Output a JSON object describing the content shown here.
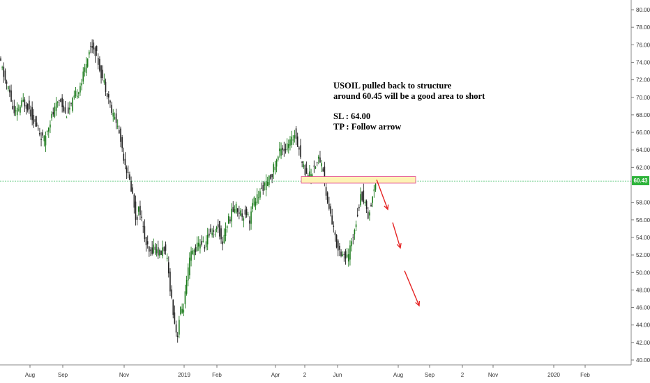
{
  "annotation": {
    "line1": "USOIL pulled back to structure",
    "line2": "around 60.45 will be a good area to short",
    "line3": "SL : 64.00",
    "line4": "TP : Follow arrow"
  },
  "current_price_label": "60.43",
  "colors": {
    "up": "#1a7a1a",
    "down": "#222222",
    "hline": "#45c06a",
    "zone_fill": "#fdf3b6",
    "zone_stroke": "#e0458a",
    "arrow": "#e52222",
    "price_tag": "#2db33a"
  },
  "chart_data": {
    "type": "candlestick",
    "instrument": "USOIL",
    "y_axis": {
      "min": 40,
      "max": 80,
      "ticks": [
        "80.00",
        "78.00",
        "76.00",
        "74.00",
        "72.00",
        "70.00",
        "68.00",
        "66.00",
        "64.00",
        "62.00",
        "58.00",
        "56.00",
        "54.00",
        "52.00",
        "50.00",
        "48.00",
        "46.00",
        "44.00",
        "42.00",
        "40.00"
      ]
    },
    "x_axis": {
      "ticks": [
        "Aug",
        "Sep",
        "Nov",
        "2019",
        "Feb",
        "Apr",
        "2",
        "Jun",
        "Aug",
        "Sep",
        "2",
        "Nov",
        "2020",
        "Feb"
      ]
    },
    "current_price": 60.43,
    "horizontal_line": 60.43,
    "short_zone": {
      "low": 60.2,
      "high": 60.95
    },
    "close_path": [
      [
        0,
        74.5
      ],
      [
        4,
        73.5
      ],
      [
        9,
        72
      ],
      [
        16,
        70.5
      ],
      [
        22,
        68
      ],
      [
        28,
        68.5
      ],
      [
        35,
        69.5
      ],
      [
        42,
        69
      ],
      [
        50,
        67.5
      ],
      [
        58,
        66
      ],
      [
        65,
        65
      ],
      [
        72,
        67
      ],
      [
        80,
        68.5
      ],
      [
        88,
        70
      ],
      [
        96,
        68
      ],
      [
        104,
        69
      ],
      [
        112,
        70.5
      ],
      [
        120,
        72
      ],
      [
        128,
        75
      ],
      [
        134,
        76
      ],
      [
        140,
        75
      ],
      [
        146,
        73
      ],
      [
        152,
        71.5
      ],
      [
        158,
        70
      ],
      [
        163,
        68
      ],
      [
        168,
        67.5
      ],
      [
        174,
        65.5
      ],
      [
        180,
        63
      ],
      [
        186,
        61
      ],
      [
        192,
        59
      ],
      [
        197,
        56
      ],
      [
        202,
        57.5
      ],
      [
        207,
        55
      ],
      [
        212,
        53
      ],
      [
        217,
        52
      ],
      [
        222,
        53
      ],
      [
        227,
        52.5
      ],
      [
        232,
        52
      ],
      [
        237,
        53
      ],
      [
        242,
        51
      ],
      [
        248,
        47
      ],
      [
        253,
        44
      ],
      [
        256,
        42.5
      ],
      [
        260,
        45.5
      ],
      [
        265,
        46
      ],
      [
        270,
        49
      ],
      [
        275,
        52
      ],
      [
        280,
        52.5
      ],
      [
        285,
        53
      ],
      [
        290,
        53.5
      ],
      [
        295,
        53
      ],
      [
        300,
        54
      ],
      [
        305,
        55
      ],
      [
        310,
        54.5
      ],
      [
        315,
        55.5
      ],
      [
        320,
        53
      ],
      [
        325,
        55
      ],
      [
        330,
        56
      ],
      [
        335,
        57
      ],
      [
        340,
        57.5
      ],
      [
        345,
        57
      ],
      [
        350,
        56.5
      ],
      [
        355,
        57
      ],
      [
        360,
        56
      ],
      [
        365,
        58
      ],
      [
        370,
        58.5
      ],
      [
        375,
        59
      ],
      [
        380,
        60
      ],
      [
        385,
        60
      ],
      [
        390,
        61
      ],
      [
        395,
        62
      ],
      [
        400,
        63
      ],
      [
        405,
        64.5
      ],
      [
        410,
        64
      ],
      [
        415,
        64.5
      ],
      [
        420,
        65
      ],
      [
        425,
        66
      ],
      [
        430,
        64.5
      ],
      [
        435,
        62.5
      ],
      [
        440,
        61.5
      ],
      [
        445,
        61
      ],
      [
        450,
        61.5
      ],
      [
        455,
        62.5
      ],
      [
        460,
        63
      ],
      [
        465,
        62
      ],
      [
        470,
        58.5
      ],
      [
        475,
        57
      ],
      [
        480,
        55
      ],
      [
        485,
        53
      ],
      [
        490,
        52.5
      ],
      [
        495,
        52
      ],
      [
        500,
        51.5
      ],
      [
        505,
        53
      ],
      [
        510,
        55
      ],
      [
        515,
        57
      ],
      [
        520,
        59
      ],
      [
        525,
        58
      ],
      [
        530,
        56.5
      ],
      [
        535,
        58
      ],
      [
        540,
        60.5
      ]
    ],
    "projection_arrow": [
      [
        540,
        60.6
      ],
      [
        556,
        57.2
      ],
      [
        563,
        55.7
      ],
      [
        574,
        52.8
      ],
      [
        580,
        50.2
      ],
      [
        601,
        46.2
      ]
    ]
  }
}
